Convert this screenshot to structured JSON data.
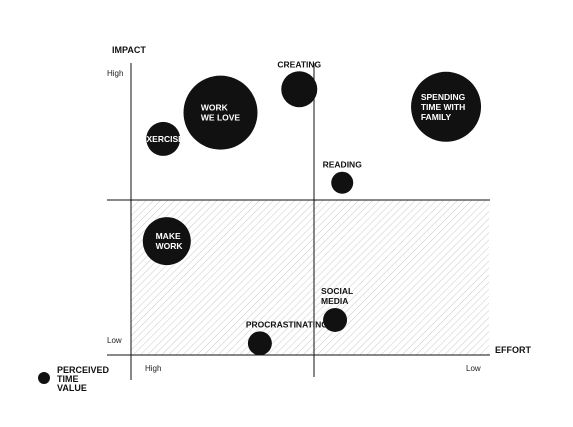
{
  "chart_data": {
    "type": "scatter",
    "title": "",
    "ylabel": "IMPACT",
    "xlabel": "EFFORT",
    "y_ticks": {
      "high": "High",
      "low": "Low"
    },
    "x_ticks": {
      "high": "High",
      "low": "Low"
    },
    "legend": {
      "label": [
        "PERCEIVED",
        "TIME",
        "VALUE"
      ],
      "placement": "bottom-left"
    },
    "shaded_region": "low-impact half (hatched)",
    "note": "Bubble size encodes perceived time value; x runs from high effort (0) to low effort (1), y from low impact (0) to high impact (1).",
    "points": [
      {
        "id": "work-we-love",
        "label": [
          "WORK",
          "WE LOVE"
        ],
        "effort": 0.25,
        "impact": 0.83,
        "size": 37,
        "label_pos": "inside"
      },
      {
        "id": "exercise",
        "label": [
          "EXERCISE"
        ],
        "effort": 0.09,
        "impact": 0.74,
        "size": 17,
        "label_pos": "inside"
      },
      {
        "id": "creating",
        "label": [
          "CREATING"
        ],
        "effort": 0.47,
        "impact": 0.91,
        "size": 18,
        "label_pos": "above"
      },
      {
        "id": "spending-time",
        "label": [
          "SPENDING",
          "TIME WITH",
          "FAMILY"
        ],
        "effort": 0.88,
        "impact": 0.85,
        "size": 35,
        "label_pos": "inside"
      },
      {
        "id": "reading",
        "label": [
          "READING"
        ],
        "effort": 0.59,
        "impact": 0.59,
        "size": 11,
        "label_pos": "above"
      },
      {
        "id": "make-work",
        "label": [
          "MAKE",
          "WORK"
        ],
        "effort": 0.1,
        "impact": 0.39,
        "size": 24,
        "label_pos": "inside"
      },
      {
        "id": "social-media",
        "label": [
          "SOCIAL",
          "MEDIA"
        ],
        "effort": 0.57,
        "impact": 0.12,
        "size": 12,
        "label_pos": "above-left"
      },
      {
        "id": "procrastinating",
        "label": [
          "PROCRASTINATING"
        ],
        "effort": 0.36,
        "impact": 0.04,
        "size": 12,
        "label_pos": "above-left"
      }
    ]
  }
}
